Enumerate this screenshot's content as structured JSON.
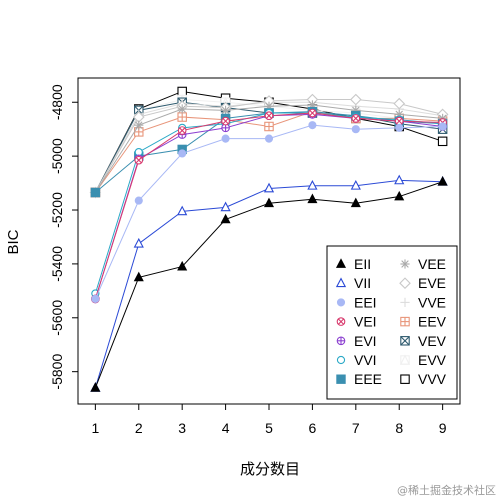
{
  "chart_data": {
    "type": "line",
    "title": "",
    "xlabel": "成分数目",
    "ylabel": "BIC",
    "x": [
      1,
      2,
      3,
      4,
      5,
      6,
      7,
      8,
      9
    ],
    "xlim": [
      0.6,
      9.4
    ],
    "ylim": [
      -5920,
      -4710
    ],
    "yticks": [
      -5800,
      -5600,
      -5400,
      -5200,
      -5000,
      -4800
    ],
    "legend_position": "bottom-right",
    "series": [
      {
        "name": "EII",
        "color": "#000000",
        "marker": "triangle-filled",
        "values": [
          -5860,
          -5450,
          -5410,
          -5235,
          -5175,
          -5160,
          -5175,
          -5150,
          -5095
        ]
      },
      {
        "name": "VII",
        "color": "#2b4ad6",
        "marker": "triangle-open",
        "values": [
          -5860,
          -5325,
          -5205,
          -5190,
          -5120,
          -5110,
          -5110,
          -5090,
          -5095
        ]
      },
      {
        "name": "EEI",
        "color": "#a8b8f5",
        "marker": "circle-filled",
        "values": [
          -5530,
          -5165,
          -4990,
          -4935,
          -4935,
          -4885,
          -4900,
          -4895,
          -4890
        ]
      },
      {
        "name": "VEI",
        "color": "#d83b6e",
        "marker": "circle-x",
        "values": [
          -5530,
          -5015,
          -4905,
          -4870,
          -4850,
          -4840,
          -4860,
          -4870,
          -4875
        ]
      },
      {
        "name": "EVI",
        "color": "#8b3fd0",
        "marker": "circle-plus",
        "values": [
          -5530,
          -5010,
          -4920,
          -4895,
          -4850,
          -4845,
          -4860,
          -4870,
          -4890
        ]
      },
      {
        "name": "VVI",
        "color": "#2aa9c7",
        "marker": "circle-open",
        "values": [
          -5510,
          -4985,
          -4895,
          -4880,
          -4840,
          -4840,
          -4855,
          -4865,
          -4880
        ]
      },
      {
        "name": "EEE",
        "color": "#3a8fb0",
        "marker": "square-filled",
        "values": [
          -5135,
          -5000,
          -4975,
          -4860,
          -4840,
          -4835,
          -4850,
          -4870,
          -4880
        ]
      },
      {
        "name": "VEE",
        "color": "#aaaaaa",
        "marker": "asterisk",
        "values": [
          -5135,
          -4885,
          -4825,
          -4830,
          -4815,
          -4810,
          -4830,
          -4845,
          -4860
        ]
      },
      {
        "name": "EVE",
        "color": "#c8c8c8",
        "marker": "diamond-open",
        "values": [
          -5135,
          -4855,
          -4815,
          -4820,
          -4795,
          -4790,
          -4790,
          -4805,
          -4845
        ]
      },
      {
        "name": "VVE",
        "color": "#dcdcdc",
        "marker": "plus",
        "values": [
          -5135,
          -4845,
          -4805,
          -4815,
          -4800,
          -4800,
          -4815,
          -4825,
          -4850
        ]
      },
      {
        "name": "EEV",
        "color": "#e8957a",
        "marker": "square-plus",
        "values": [
          -5135,
          -4910,
          -4855,
          -4865,
          -4890,
          -4835,
          -4860,
          -4860,
          -4870
        ]
      },
      {
        "name": "VEV",
        "color": "#2e5a6e",
        "marker": "square-x",
        "values": [
          -5135,
          -4830,
          -4800,
          -4820,
          -4840,
          -4840,
          -4850,
          -4880,
          -4900
        ]
      },
      {
        "name": "EVV",
        "color": "#f0f0f0",
        "marker": "triangle-in-square",
        "values": [
          -5135,
          -4830,
          -4790,
          -4800,
          -4815,
          -4830,
          -4840,
          -4860,
          -4870
        ]
      },
      {
        "name": "VVV",
        "color": "#000000",
        "marker": "square-open",
        "values": [
          -5135,
          -4825,
          -4760,
          -4785,
          -4800,
          -4825,
          -4860,
          -4890,
          -4945
        ]
      }
    ]
  },
  "watermark": "@稀土掘金技术社区"
}
